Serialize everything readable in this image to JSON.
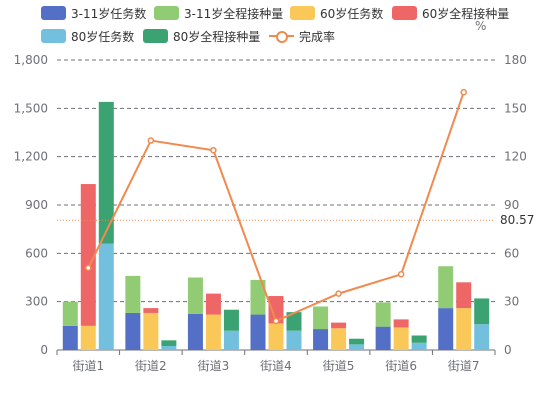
{
  "chart_data": {
    "type": "bar",
    "categories": [
      "街道1",
      "街道2",
      "街道3",
      "街道4",
      "街道5",
      "街道6",
      "街道7"
    ],
    "y_left": {
      "ticks": [
        0,
        300,
        600,
        900,
        1200,
        1500,
        1800
      ],
      "tick_labels": [
        "0",
        "300",
        "600",
        "900",
        "1,200",
        "1,500",
        "1,800"
      ],
      "ylim": [
        0,
        1800
      ]
    },
    "y_right": {
      "unit_label": "%",
      "ticks": [
        0,
        30,
        60,
        90,
        120,
        150,
        180
      ],
      "tick_labels": [
        "0",
        "30",
        "60",
        "90",
        "120",
        "150",
        "180"
      ],
      "ylim": [
        0,
        180
      ]
    },
    "series": [
      {
        "name": "3-11岁任务数",
        "stack": "A",
        "color": "#5470c6",
        "values": [
          150,
          230,
          225,
          220,
          130,
          145,
          260
        ]
      },
      {
        "name": "3-11岁全程接种量",
        "stack": "A",
        "color": "#91cc75",
        "values": [
          150,
          230,
          225,
          215,
          140,
          150,
          260
        ]
      },
      {
        "name": "60岁任务数",
        "stack": "B",
        "color": "#fac858",
        "values": [
          150,
          230,
          220,
          165,
          135,
          140,
          260
        ]
      },
      {
        "name": "60岁全程接种量",
        "stack": "B",
        "color": "#ee6666",
        "values": [
          880,
          30,
          130,
          170,
          35,
          50,
          160
        ]
      },
      {
        "name": "80岁任务数",
        "stack": "C",
        "color": "#73c0de",
        "values": [
          660,
          25,
          120,
          120,
          35,
          45,
          160
        ]
      },
      {
        "name": "80岁全程接种量",
        "stack": "C",
        "color": "#3ba272",
        "values": [
          880,
          35,
          130,
          115,
          35,
          45,
          160
        ]
      }
    ],
    "line": {
      "name": "完成率",
      "color": "#f08a4f",
      "axis": "right",
      "values": [
        51,
        130,
        124,
        18,
        35,
        47,
        160
      ]
    },
    "markline": {
      "value": 80.57,
      "label": "80.57",
      "color": "#f08a4f",
      "axis": "right"
    },
    "legend_position": "top",
    "grid": true
  }
}
